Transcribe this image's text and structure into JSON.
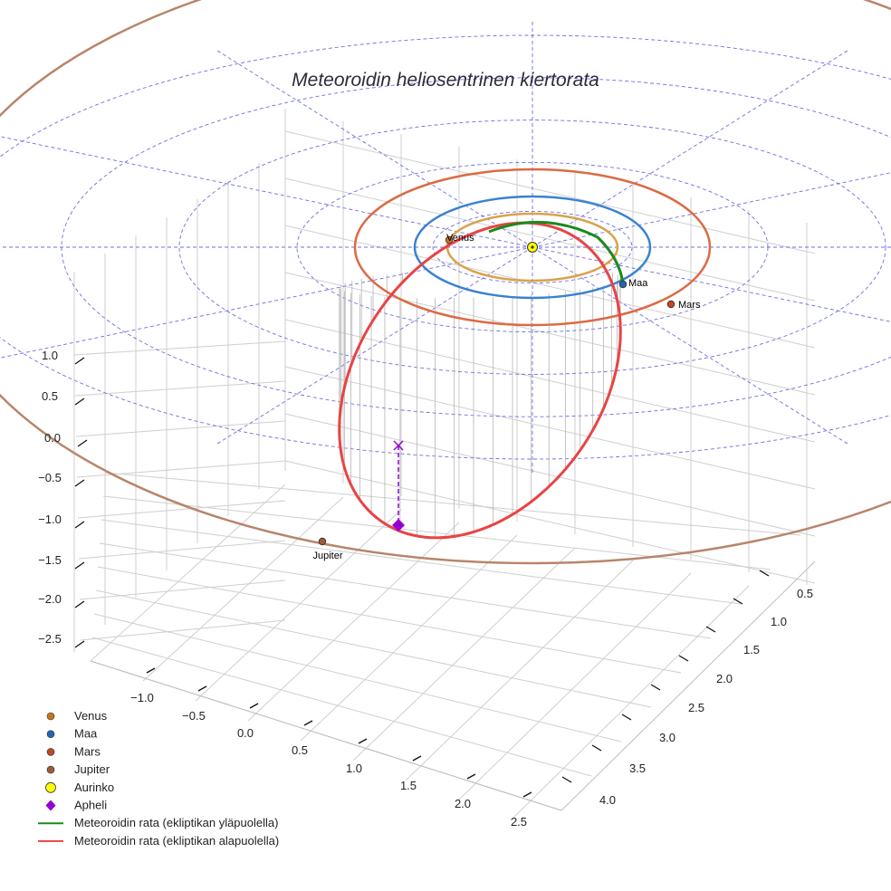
{
  "chart_data": {
    "type": "3d-orbit",
    "title": "Meteoroidin heliosentrinen kiertorata",
    "axes": {
      "x": {
        "ticks": [
          -1.0,
          -0.5,
          0.0,
          0.5,
          1.0,
          1.5,
          2.0,
          2.5
        ],
        "labels": [
          "−1.0",
          "−0.5",
          "0.0",
          "0.5",
          "1.0",
          "1.5",
          "2.0",
          "2.5"
        ]
      },
      "y": {
        "ticks": [
          0.5,
          1.0,
          1.5,
          2.0,
          2.5,
          3.0,
          3.5,
          4.0
        ],
        "labels": [
          "0.5",
          "1.0",
          "1.5",
          "2.0",
          "2.5",
          "3.0",
          "3.5",
          "4.0"
        ]
      },
      "z": {
        "ticks": [
          1.0,
          0.5,
          0.0,
          -0.5,
          -1.0,
          -1.5,
          -2.0,
          -2.5
        ],
        "labels": [
          "1.0",
          "0.5",
          "0.0",
          "−0.5",
          "−1.0",
          "−1.5",
          "−2.0",
          "−2.5"
        ]
      }
    },
    "planets": [
      {
        "name": "Venus",
        "label": "Venus",
        "color": "#c8741f",
        "orbit_color": "#d9a24a",
        "orbit_radius": 0.72
      },
      {
        "name": "Maa",
        "label": "Maa",
        "color": "#2166b0",
        "orbit_color": "#3a82d0",
        "orbit_radius": 1.0
      },
      {
        "name": "Mars",
        "label": "Mars",
        "color": "#c2481f",
        "orbit_color": "#dc6a42",
        "orbit_radius": 1.52
      },
      {
        "name": "Jupiter",
        "label": "Jupiter",
        "color": "#9c5a3a",
        "orbit_color": "#b8856a",
        "orbit_radius": 5.2
      }
    ],
    "sun": {
      "name": "Aurinko",
      "color": "#ffff00"
    },
    "aphelion": {
      "name": "Apheli",
      "color": "#9400d3"
    },
    "orbit_segments": [
      {
        "name": "Meteoroidin rata (ekliptikan yläpuolella)",
        "color": "#1a8a1a"
      },
      {
        "name": "Meteoroidin rata (ekliptikan alapuolella)",
        "color": "#e84444"
      }
    ],
    "polar_grid": {
      "color": "#5555dd",
      "style": "dashed"
    },
    "legend": [
      "Venus",
      "Maa",
      "Mars",
      "Jupiter",
      "Aurinko",
      "Apheli",
      "Meteoroidin rata (ekliptikan yläpuolella)",
      "Meteoroidin rata (ekliptikan alapuolella)"
    ],
    "legend_position": "bottom-left"
  }
}
